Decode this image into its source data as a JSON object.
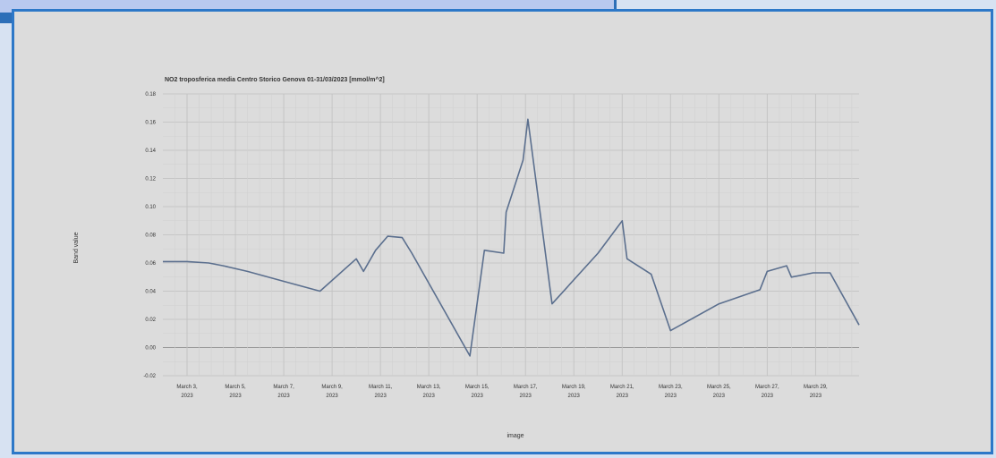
{
  "chart_data": {
    "type": "line",
    "title": "NO2 troposferica media Centro Storico Genova 01-31/03/2023 [mmol/m^2]",
    "xlabel": "image",
    "ylabel": "Band value",
    "ylim": [
      -0.02,
      0.18
    ],
    "yticks": [
      "0.18",
      "0.16",
      "0.14",
      "0.12",
      "0.10",
      "0.08",
      "0.06",
      "0.04",
      "0.02",
      "0.00",
      "-0.02"
    ],
    "xlim": [
      2.0,
      30.8
    ],
    "xticks": [
      {
        "day": 3,
        "line1": "March 3,",
        "line2": "2023"
      },
      {
        "day": 5,
        "line1": "March 5,",
        "line2": "2023"
      },
      {
        "day": 7,
        "line1": "March 7,",
        "line2": "2023"
      },
      {
        "day": 9,
        "line1": "March 9,",
        "line2": "2023"
      },
      {
        "day": 11,
        "line1": "March 11,",
        "line2": "2023"
      },
      {
        "day": 13,
        "line1": "March 13,",
        "line2": "2023"
      },
      {
        "day": 15,
        "line1": "March 15,",
        "line2": "2023"
      },
      {
        "day": 17,
        "line1": "March 17,",
        "line2": "2023"
      },
      {
        "day": 19,
        "line1": "March 19,",
        "line2": "2023"
      },
      {
        "day": 21,
        "line1": "March 21,",
        "line2": "2023"
      },
      {
        "day": 23,
        "line1": "March 23,",
        "line2": "2023"
      },
      {
        "day": 25,
        "line1": "March 25,",
        "line2": "2023"
      },
      {
        "day": 27,
        "line1": "March 27,",
        "line2": "2023"
      },
      {
        "day": 29,
        "line1": "March 29,",
        "line2": "2023"
      }
    ],
    "grid": true,
    "series": [
      {
        "color": "#5b6f8e",
        "x": [
          2.0,
          3.0,
          3.9,
          4.5,
          5.5,
          7.0,
          8.5,
          10.0,
          10.3,
          10.8,
          11.3,
          11.9,
          12.3,
          14.7,
          15.3,
          16.1,
          16.2,
          16.9,
          17.1,
          18.1,
          20.0,
          21.0,
          21.2,
          22.2,
          23.0,
          25.0,
          26.7,
          27.0,
          27.8,
          28.0,
          28.9,
          29.6,
          30.8
        ],
        "y": [
          0.061,
          0.061,
          0.06,
          0.058,
          0.054,
          0.047,
          0.04,
          0.063,
          0.054,
          0.069,
          0.079,
          0.078,
          0.067,
          -0.006,
          0.069,
          0.067,
          0.096,
          0.133,
          0.162,
          0.031,
          0.067,
          0.09,
          0.063,
          0.052,
          0.012,
          0.031,
          0.041,
          0.054,
          0.058,
          0.05,
          0.053,
          0.053,
          0.016
        ]
      }
    ]
  }
}
